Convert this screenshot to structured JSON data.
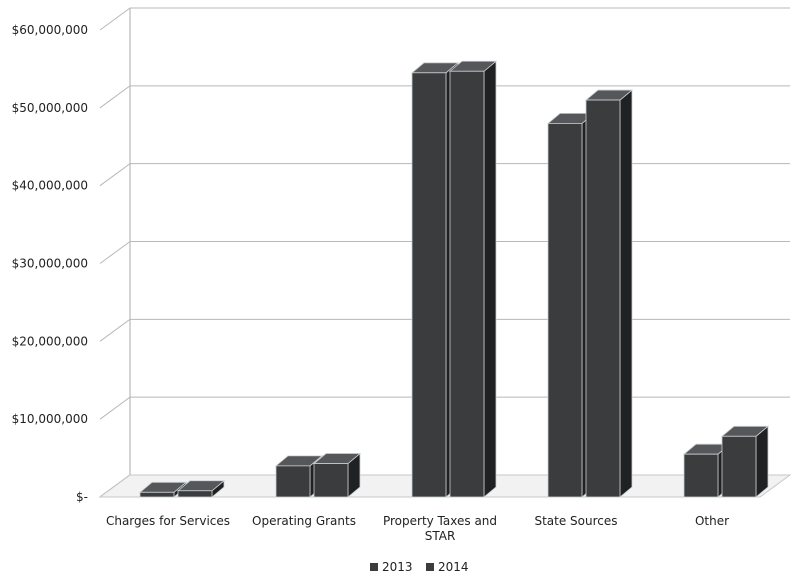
{
  "chart_data": {
    "type": "bar",
    "title": "",
    "xlabel": "",
    "ylabel": "",
    "categories": [
      [
        "Charges for Services"
      ],
      [
        "Operating Grants"
      ],
      [
        "Property Taxes and",
        "STAR"
      ],
      [
        "State Sources"
      ],
      [
        "Other"
      ]
    ],
    "series": [
      {
        "name": "2013",
        "values": [
          600000,
          4000000,
          54500000,
          48000000,
          5500000
        ]
      },
      {
        "name": "2014",
        "values": [
          800000,
          4300000,
          54700000,
          51000000,
          7800000
        ]
      }
    ],
    "y_ticks": [
      "$-",
      "$10,000,000",
      "$20,000,000",
      "$30,000,000",
      "$40,000,000",
      "$50,000,000",
      "$60,000,000"
    ],
    "ylim": [
      0,
      60000000
    ],
    "grid": true,
    "legend_position": "bottom",
    "colors": {
      "bar_front": "#3b3c3e",
      "bar_side": "#202123",
      "bar_top": "#55575a",
      "bar_edge": "#c9d0d2",
      "grid": "#b8b8b8",
      "wall": "#c7c7c7"
    }
  }
}
